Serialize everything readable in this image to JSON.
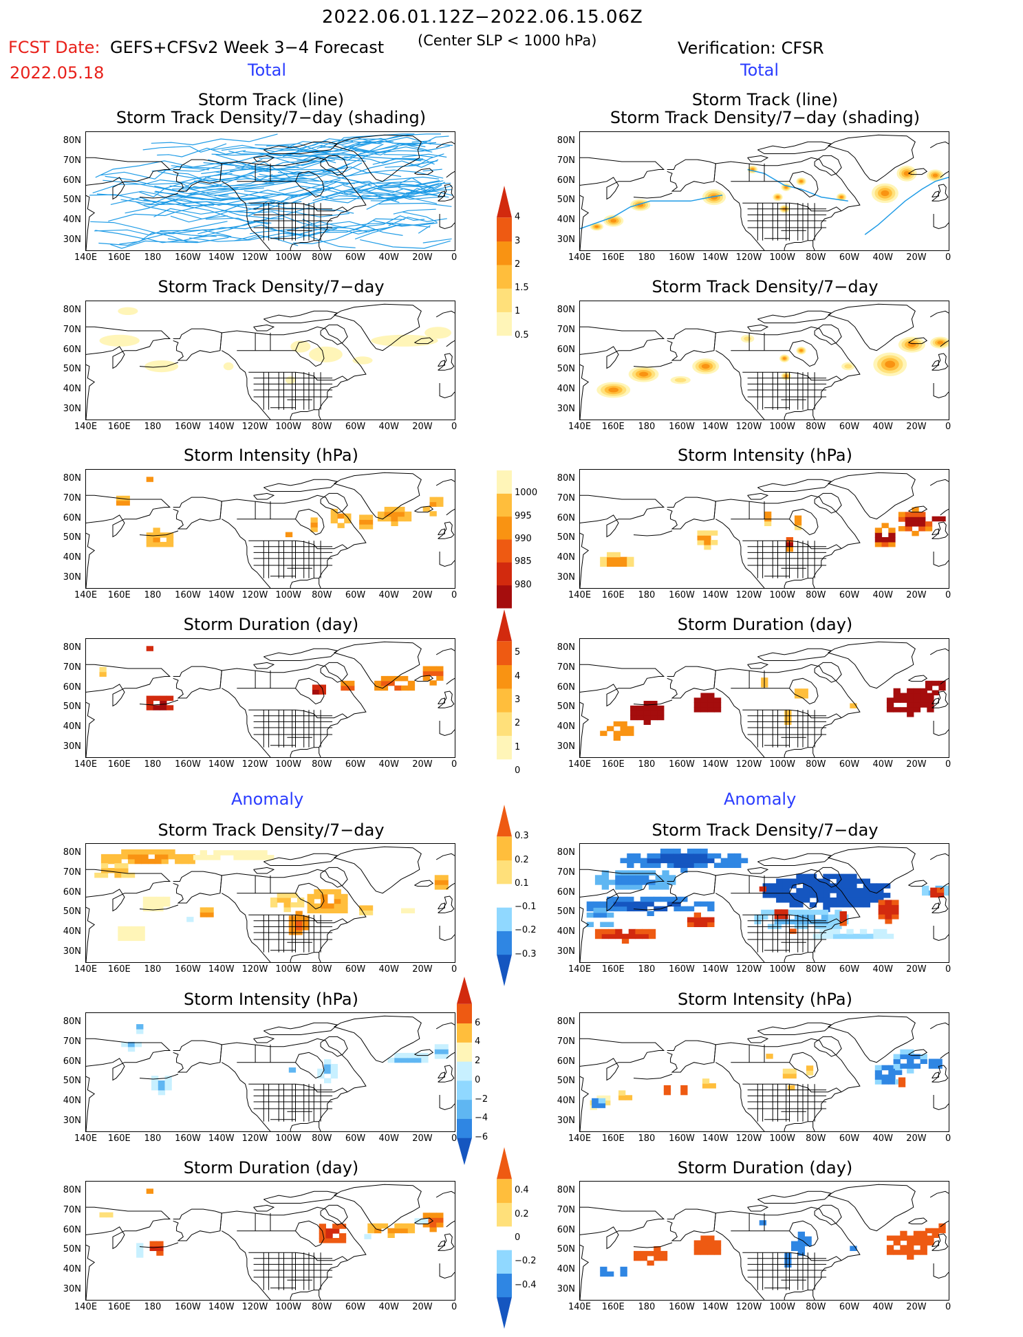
{
  "header": {
    "date_range": "2022.06.01.12Z−2022.06.15.06Z",
    "fcst_label": "FCST Date:",
    "fcst_date": "2022.05.18",
    "forecast": "GEFS+CFSv2 Week 3−4 Forecast",
    "center_slp": "(Center SLP < 1000 hPa)",
    "verification": "Verification: CFSR"
  },
  "sections": {
    "total_left": "Total",
    "total_right": "Total",
    "anomaly_left": "Anomaly",
    "anomaly_right": "Anomaly"
  },
  "panel_titles": {
    "track_line": "Storm Track (line)",
    "track_density_shading": "Storm Track Density/7−day (shading)",
    "track_density": "Storm Track Density/7−day",
    "intensity": "Storm Intensity (hPa)",
    "duration": "Storm Duration (day)"
  },
  "axes": {
    "lat_labels": [
      "80N",
      "70N",
      "60N",
      "50N",
      "40N",
      "30N"
    ],
    "lon_labels": [
      "140E",
      "160E",
      "180",
      "160W",
      "140W",
      "120W",
      "100W",
      "80W",
      "60W",
      "40W",
      "20W",
      "0"
    ]
  },
  "colorbars": {
    "density_total": [
      "0.5",
      "1",
      "1.5",
      "2",
      "3",
      "4"
    ],
    "intensity_total": [
      "1000",
      "995",
      "990",
      "985",
      "980"
    ],
    "duration_total": [
      "0",
      "1",
      "2",
      "3",
      "4",
      "5"
    ],
    "density_anom": [
      "−0.3",
      "−0.2",
      "−0.1",
      "0.1",
      "0.2",
      "0.3"
    ],
    "intensity_anom": [
      "−6",
      "−4",
      "−2",
      "0",
      "2",
      "4",
      "6"
    ],
    "duration_anom": [
      "−0.4",
      "−0.2",
      "0",
      "0.2",
      "0.4"
    ]
  },
  "colors": {
    "warm": [
      "#fff5b8",
      "#ffe07a",
      "#ffbe3c",
      "#f99312",
      "#ee5a12",
      "#d22a0e",
      "#a50d0d"
    ],
    "cool": [
      "#c8f0ff",
      "#90d8ff",
      "#5fb6f2",
      "#2f86e3",
      "#1556c0"
    ],
    "track_line": "#1e9be6",
    "section_blue": "#2a3cff",
    "fcst_red": "#e8201a"
  }
}
